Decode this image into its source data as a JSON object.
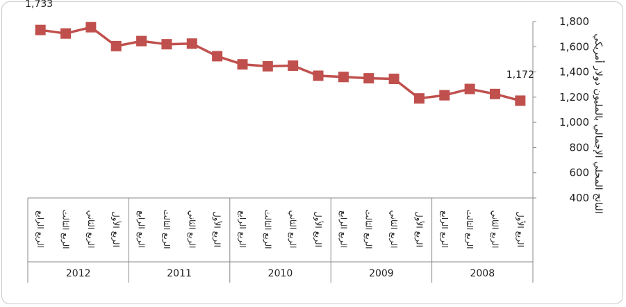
{
  "chart_data": {
    "type": "line",
    "title": "",
    "ylabel": "الناتج المحلي الإجمالي بالمليون دولار أمريكي",
    "ylim": [
      400,
      1800
    ],
    "yticks": [
      "1,800",
      "1,600",
      "1,400",
      "1,200",
      "1,000",
      "800",
      "600",
      "400"
    ],
    "grid": false,
    "color": "#c0504d",
    "x_axis_direction": "right-to-left",
    "quarter_labels": [
      "الربع الأول",
      "الربع الثاني",
      "الربع الثالث",
      "الربع الرابع"
    ],
    "years": [
      "2008",
      "2009",
      "2010",
      "2011",
      "2012"
    ],
    "series": [
      {
        "values": [
          1172,
          1225,
          1265,
          1215,
          1190,
          1345,
          1350,
          1360,
          1370,
          1450,
          1445,
          1460,
          1525,
          1625,
          1620,
          1645,
          1605,
          1755,
          1705,
          1733
        ]
      }
    ],
    "data_labels": [
      {
        "index": 0,
        "text": "1,172"
      },
      {
        "index": 19,
        "text": "1,733"
      }
    ]
  }
}
